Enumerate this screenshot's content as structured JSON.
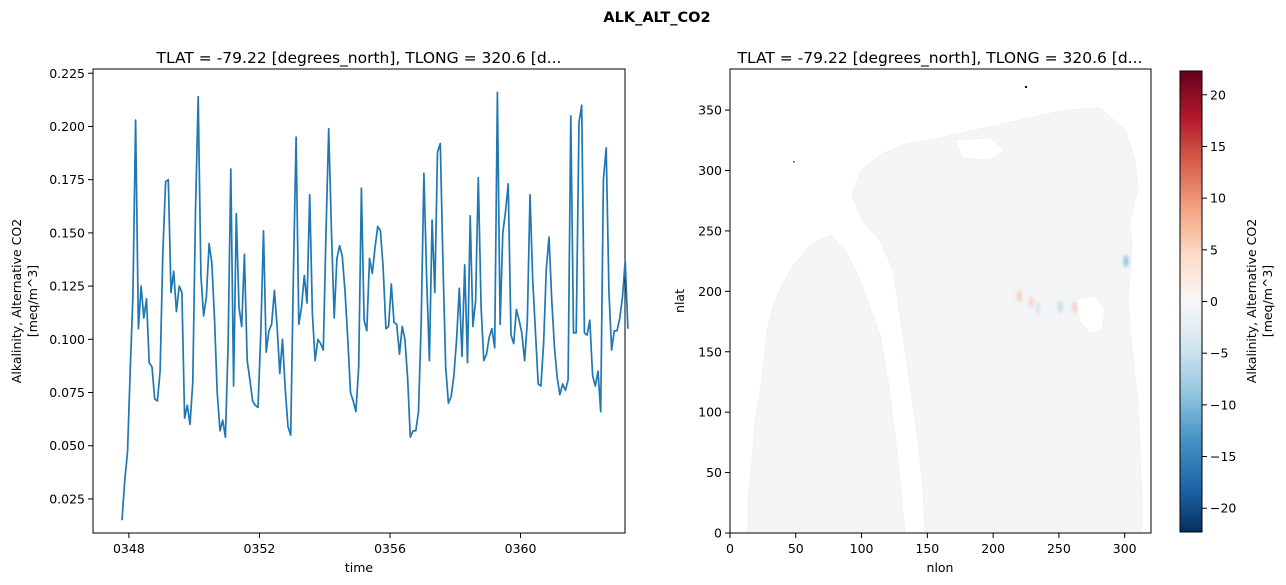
{
  "figure": {
    "suptitle": "ALK_ALT_CO2"
  },
  "chart_data": [
    {
      "type": "line",
      "title": "TLAT = -79.22 [degrees_north], TLONG = 320.6 [d...",
      "xlabel": "time",
      "ylabel": "Alkalinity, Alternative CO2",
      "ylabel_units": "[meq/m^3]",
      "xlim": [
        346.9,
        363.2
      ],
      "ylim": [
        0.009,
        0.227
      ],
      "xticks": [
        348,
        352,
        356,
        360
      ],
      "xtick_labels": [
        "0348",
        "0352",
        "0356",
        "0360"
      ],
      "yticks": [
        0.025,
        0.05,
        0.075,
        0.1,
        0.125,
        0.15,
        0.175,
        0.2,
        0.225
      ],
      "ytick_labels": [
        "0.025",
        "0.050",
        "0.075",
        "0.100",
        "0.125",
        "0.150",
        "0.175",
        "0.200",
        "0.225"
      ],
      "grid": false,
      "color": "#1f77b4",
      "series": [
        {
          "x_start": 347.79,
          "x_step": 0.08333,
          "values": [
            0.015,
            0.034,
            0.047,
            0.085,
            0.12,
            0.203,
            0.105,
            0.125,
            0.11,
            0.119,
            0.089,
            0.087,
            0.072,
            0.071,
            0.085,
            0.14,
            0.174,
            0.175,
            0.122,
            0.132,
            0.113,
            0.125,
            0.122,
            0.063,
            0.069,
            0.06,
            0.08,
            0.16,
            0.214,
            0.13,
            0.111,
            0.12,
            0.145,
            0.136,
            0.11,
            0.075,
            0.057,
            0.062,
            0.054,
            0.097,
            0.18,
            0.078,
            0.159,
            0.115,
            0.106,
            0.14,
            0.09,
            0.081,
            0.071,
            0.069,
            0.068,
            0.103,
            0.151,
            0.094,
            0.104,
            0.107,
            0.123,
            0.106,
            0.084,
            0.1,
            0.077,
            0.059,
            0.055,
            0.13,
            0.195,
            0.107,
            0.115,
            0.13,
            0.117,
            0.168,
            0.112,
            0.09,
            0.1,
            0.098,
            0.095,
            0.15,
            0.199,
            0.15,
            0.11,
            0.138,
            0.144,
            0.139,
            0.122,
            0.1,
            0.075,
            0.071,
            0.066,
            0.087,
            0.171,
            0.109,
            0.104,
            0.138,
            0.131,
            0.143,
            0.153,
            0.151,
            0.134,
            0.105,
            0.106,
            0.126,
            0.108,
            0.107,
            0.093,
            0.106,
            0.1,
            0.082,
            0.054,
            0.057,
            0.057,
            0.066,
            0.108,
            0.178,
            0.128,
            0.09,
            0.156,
            0.122,
            0.188,
            0.192,
            0.135,
            0.087,
            0.07,
            0.073,
            0.083,
            0.1,
            0.124,
            0.092,
            0.135,
            0.089,
            0.158,
            0.106,
            0.118,
            0.176,
            0.115,
            0.09,
            0.093,
            0.101,
            0.105,
            0.096,
            0.216,
            0.107,
            0.15,
            0.16,
            0.173,
            0.102,
            0.098,
            0.114,
            0.109,
            0.103,
            0.09,
            0.108,
            0.168,
            0.128,
            0.104,
            0.079,
            0.078,
            0.098,
            0.133,
            0.148,
            0.118,
            0.096,
            0.082,
            0.074,
            0.079,
            0.076,
            0.081,
            0.205,
            0.103,
            0.103,
            0.202,
            0.21,
            0.103,
            0.102,
            0.109,
            0.083,
            0.078,
            0.085,
            0.066,
            0.175,
            0.19,
            0.123,
            0.095,
            0.104,
            0.104,
            0.11,
            0.12,
            0.137,
            0.105
          ]
        }
      ]
    },
    {
      "type": "heatmap",
      "title": "TLAT = -79.22 [degrees_north], TLONG = 320.6 [d...",
      "xlabel": "nlon",
      "ylabel": "nlat",
      "xlim": [
        0,
        320
      ],
      "ylim": [
        0,
        384
      ],
      "xticks": [
        0,
        50,
        100,
        150,
        200,
        250,
        300
      ],
      "yticks": [
        0,
        50,
        100,
        150,
        200,
        250,
        300,
        350
      ],
      "colormap": "RdBu_r",
      "background_value": 0,
      "colorbar": {
        "label": "Alkalinity, Alternative CO2",
        "units": "[meq/m^3]",
        "vmin": -22.3,
        "vmax": 22.3,
        "ticks": [
          -20,
          -15,
          -10,
          -5,
          0,
          5,
          10,
          15,
          20
        ]
      },
      "features": [
        {
          "desc": "warm anomaly",
          "nlon": 220,
          "nlat": 196,
          "value": 3
        },
        {
          "desc": "warm anomaly",
          "nlon": 229,
          "nlat": 191,
          "value": 2.5
        },
        {
          "desc": "cool anomaly",
          "nlon": 234,
          "nlat": 186,
          "value": -2
        },
        {
          "desc": "cool anomaly",
          "nlon": 251,
          "nlat": 187,
          "value": -3
        },
        {
          "desc": "warm anomaly",
          "nlon": 262,
          "nlat": 187,
          "value": 2.5
        },
        {
          "desc": "cool anomaly",
          "nlon": 301,
          "nlat": 225,
          "value": -6
        }
      ],
      "land_mask_color": "#ffffff",
      "ocean_color": "#f3f5f6"
    }
  ]
}
